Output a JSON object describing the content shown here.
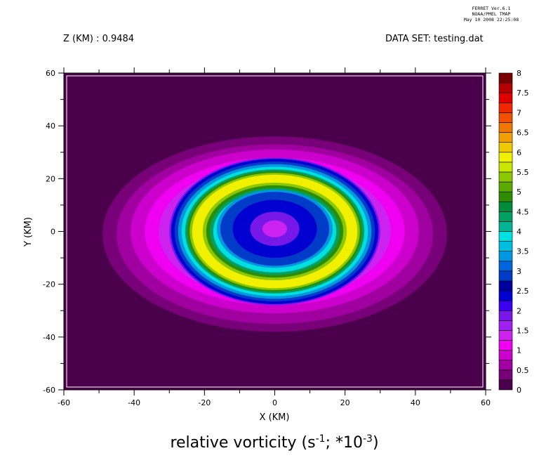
{
  "stamp": {
    "line1": "FERRET  Ver.6.1",
    "line2": "NOAA/PMEL TMAP",
    "line3": "May 10 2008 22:25:08"
  },
  "header": {
    "left": "Z (KM) : 0.9484",
    "right": "DATA SET: testing.dat"
  },
  "chart_data": {
    "type": "heatmap",
    "title": "relative vorticity (s^-1; *10^-3)",
    "title_base": "relative vorticity (s",
    "title_exp1": "-1",
    "title_mid": "; *10",
    "title_exp2": "-3",
    "title_end": ")",
    "xlabel": "X (KM)",
    "ylabel": "Y (KM)",
    "xlim": [
      -60,
      60
    ],
    "ylim": [
      -60,
      60
    ],
    "x_major_ticks": [
      -60,
      -40,
      -20,
      0,
      20,
      40,
      60
    ],
    "x_tick_labels": [
      "-60",
      "-40",
      "-20",
      "0",
      "20",
      "40",
      "60"
    ],
    "y_major_ticks": [
      -60,
      -40,
      -20,
      0,
      20,
      40,
      60
    ],
    "y_tick_labels": [
      "-60",
      "-40",
      "-20",
      "0",
      "20",
      "40",
      "60"
    ],
    "field_description": "concentric ring vortex centered near (0, 1) km",
    "colorbar": {
      "levels": [
        0,
        0.25,
        0.5,
        0.75,
        1,
        1.25,
        1.5,
        1.75,
        2,
        2.25,
        2.5,
        2.75,
        3,
        3.25,
        3.5,
        3.75,
        4,
        4.25,
        4.5,
        4.75,
        5,
        5.25,
        5.5,
        5.75,
        6,
        6.25,
        6.5,
        6.75,
        7,
        7.25,
        7.5,
        7.75,
        8
      ],
      "labels": [
        "0",
        "0.5",
        "1",
        "1.5",
        "2",
        "2.5",
        "3",
        "3.5",
        "4",
        "4.5",
        "5",
        "5.5",
        "6",
        "6.5",
        "7",
        "7.5",
        "8"
      ],
      "colors": [
        "#4b004b",
        "#780078",
        "#a000a0",
        "#cc00cc",
        "#f000f0",
        "#cc22f0",
        "#a020f0",
        "#7818e8",
        "#3c00f0",
        "#0000d0",
        "#0000a0",
        "#003cc8",
        "#0064dc",
        "#0096e0",
        "#00bee0",
        "#00e0e0",
        "#00b496",
        "#00a064",
        "#008c3c",
        "#2d8c00",
        "#5aaa00",
        "#8cc800",
        "#c8e600",
        "#f0f000",
        "#f0c800",
        "#f0a000",
        "#f07800",
        "#f05000",
        "#f02800",
        "#e00000",
        "#b40000",
        "#780000"
      ]
    },
    "contours": [
      {
        "value": 0.25,
        "rx": 49,
        "ry": 37,
        "cx": 0,
        "cy": -1
      },
      {
        "value": 0.5,
        "rx": 45,
        "ry": 34,
        "cx": 0,
        "cy": -1
      },
      {
        "value": 0.75,
        "rx": 41,
        "ry": 31,
        "cx": 0,
        "cy": 0
      },
      {
        "value": 1.0,
        "rx": 37,
        "ry": 28,
        "cx": 0,
        "cy": 0
      },
      {
        "value": 1.25,
        "rx": 33,
        "ry": 26,
        "cx": 0,
        "cy": 0
      },
      {
        "value": 1.75,
        "rx": 30,
        "ry": 28,
        "cx": 0,
        "cy": 0
      },
      {
        "value": 2.25,
        "rx": 29.5,
        "ry": 27.5,
        "cx": 0,
        "cy": 0
      },
      {
        "value": 2.75,
        "rx": 28.5,
        "ry": 26.5,
        "cx": 0,
        "cy": 0
      },
      {
        "value": 3.25,
        "rx": 27.5,
        "ry": 25.5,
        "cx": 0,
        "cy": 0
      },
      {
        "value": 3.75,
        "rx": 26.5,
        "ry": 24.5,
        "cx": 0,
        "cy": 0
      },
      {
        "value": 4.25,
        "rx": 25.5,
        "ry": 23.5,
        "cx": 0,
        "cy": 0
      },
      {
        "value": 4.75,
        "rx": 24.8,
        "ry": 22.8,
        "cx": 0,
        "cy": 0
      },
      {
        "value": 5.25,
        "rx": 24.2,
        "ry": 22.2,
        "cx": 0,
        "cy": 0
      },
      {
        "value": 5.75,
        "rx": 23.5,
        "ry": 21.5,
        "cx": 0,
        "cy": 0
      },
      {
        "value": 5.25,
        "rx": 20.5,
        "ry": 18.5,
        "cx": 0,
        "cy": 0
      },
      {
        "value": 4.75,
        "rx": 19.5,
        "ry": 17.5,
        "cx": 0,
        "cy": 0
      },
      {
        "value": 4.25,
        "rx": 18.5,
        "ry": 16.5,
        "cx": 0,
        "cy": 0
      },
      {
        "value": 3.75,
        "rx": 17.5,
        "ry": 15.5,
        "cx": 0,
        "cy": 0
      },
      {
        "value": 3.25,
        "rx": 16.5,
        "ry": 14.8,
        "cx": 0,
        "cy": 1
      },
      {
        "value": 2.75,
        "rx": 15.5,
        "ry": 14,
        "cx": 0,
        "cy": 1
      },
      {
        "value": 2.25,
        "rx": 12,
        "ry": 11,
        "cx": 0,
        "cy": 1
      },
      {
        "value": 1.75,
        "rx": 7,
        "ry": 6.5,
        "cx": 0,
        "cy": 1
      },
      {
        "value": 1.25,
        "rx": 3.5,
        "ry": 3.2,
        "cx": 0,
        "cy": 1
      }
    ]
  }
}
